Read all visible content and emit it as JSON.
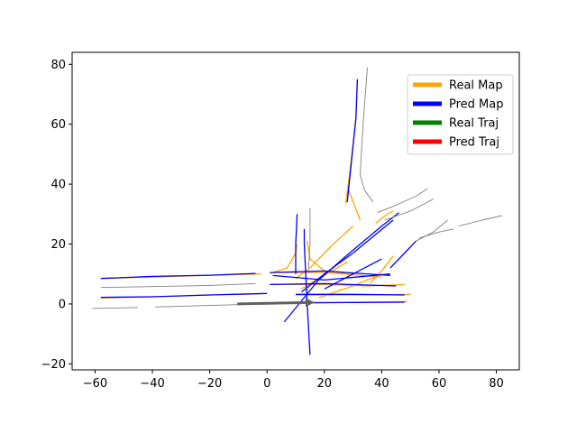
{
  "chart_data": {
    "type": "line",
    "title": "",
    "xlabel": "",
    "ylabel": "",
    "xlim": [
      -68,
      88
    ],
    "ylim": [
      -22,
      84
    ],
    "xticks": [
      -60,
      -40,
      -20,
      0,
      20,
      40,
      60,
      80
    ],
    "yticks": [
      -20,
      0,
      20,
      40,
      60,
      80
    ],
    "xtick_labels": [
      "−60",
      "−40",
      "−20",
      "0",
      "20",
      "40",
      "60",
      "80"
    ],
    "ytick_labels": [
      "−20",
      "0",
      "20",
      "40",
      "60",
      "80"
    ],
    "grid": false,
    "legend_position": "upper-right",
    "legend": [
      {
        "label": "Real Map",
        "color": "#FFA500"
      },
      {
        "label": "Pred Map",
        "color": "#0000FF"
      },
      {
        "label": "Real Traj",
        "color": "#008000"
      },
      {
        "label": "Pred Traj",
        "color": "#FF0000"
      }
    ],
    "series": [
      {
        "name": "Real Map",
        "color": "#FFA500",
        "lines": [
          [
            [
              -58,
              8.5
            ],
            [
              -40,
              9.0
            ],
            [
              -20,
              9.6
            ],
            [
              -2,
              10.0
            ]
          ],
          [
            [
              -58,
              2.0
            ],
            [
              -40,
              2.4
            ],
            [
              -20,
              3.0
            ],
            [
              -2,
              3.4
            ]
          ],
          [
            [
              1,
              6.5
            ],
            [
              20,
              6.5
            ],
            [
              35,
              6.0
            ],
            [
              48,
              6.5
            ]
          ],
          [
            [
              10,
              3.0
            ],
            [
              30,
              3.0
            ],
            [
              50,
              3.2
            ]
          ],
          [
            [
              10,
              0.5
            ],
            [
              30,
              0.5
            ],
            [
              49,
              0.8
            ]
          ],
          [
            [
              1,
              10.5
            ],
            [
              20,
              10.5
            ],
            [
              40,
              9.0
            ]
          ],
          [
            [
              1,
              10.2
            ],
            [
              7,
              12
            ],
            [
              10,
              17
            ],
            [
              10.5,
              20
            ]
          ],
          [
            [
              14,
              21
            ],
            [
              15,
              15
            ],
            [
              20,
              11
            ],
            [
              30,
              10
            ]
          ],
          [
            [
              10,
              8.5
            ],
            [
              15,
              12
            ],
            [
              22,
              19
            ],
            [
              30,
              26
            ]
          ],
          [
            [
              12,
              5
            ],
            [
              18,
              8.5
            ],
            [
              28,
              14
            ]
          ],
          [
            [
              18,
              2
            ],
            [
              30,
              6
            ],
            [
              40,
              10
            ]
          ],
          [
            [
              36,
              7
            ],
            [
              40,
              11
            ],
            [
              44,
              16
            ]
          ],
          [
            [
              27.5,
              33.5
            ],
            [
              29,
              45
            ],
            [
              31,
              62
            ],
            [
              31.5,
              75
            ]
          ],
          [
            [
              28.5,
              38
            ],
            [
              30.5,
              33
            ],
            [
              32.5,
              28
            ]
          ],
          [
            [
              38,
              27
            ],
            [
              42,
              30
            ],
            [
              44,
              31
            ]
          ]
        ]
      },
      {
        "name": "Pred Map",
        "color": "#0000FF",
        "lines": [
          [
            [
              -58,
              8.5
            ],
            [
              -40,
              9.2
            ],
            [
              -20,
              9.6
            ],
            [
              -4,
              10.2
            ]
          ],
          [
            [
              -58,
              2.2
            ],
            [
              -40,
              2.4
            ],
            [
              -20,
              3.0
            ],
            [
              0,
              3.5
            ]
          ],
          [
            [
              1,
              6.5
            ],
            [
              20,
              6.8
            ],
            [
              45,
              6.0
            ]
          ],
          [
            [
              10,
              3.2
            ],
            [
              30,
              3.2
            ],
            [
              48,
              3.0
            ]
          ],
          [
            [
              10,
              0.3
            ],
            [
              30,
              0.5
            ],
            [
              48,
              0.6
            ]
          ],
          [
            [
              1,
              10.5
            ],
            [
              20,
              11
            ],
            [
              43,
              9.5
            ]
          ],
          [
            [
              2,
              9.5
            ],
            [
              20,
              8.0
            ],
            [
              43,
              10
            ]
          ],
          [
            [
              6,
              -6
            ],
            [
              18,
              8
            ],
            [
              30,
              18
            ],
            [
              40,
              26
            ],
            [
              46,
              30.5
            ]
          ],
          [
            [
              15,
              -17
            ],
            [
              14,
              0
            ],
            [
              13,
              20
            ],
            [
              13,
              25
            ]
          ],
          [
            [
              10.5,
              30
            ],
            [
              10,
              20
            ],
            [
              10,
              10
            ]
          ],
          [
            [
              12,
              4
            ],
            [
              20,
              10
            ],
            [
              30,
              17
            ],
            [
              44,
              28
            ]
          ],
          [
            [
              20,
              5
            ],
            [
              30,
              10
            ],
            [
              40,
              15
            ]
          ],
          [
            [
              43,
              12
            ],
            [
              48,
              17
            ],
            [
              52,
              21
            ]
          ],
          [
            [
              28,
              34
            ],
            [
              29.5,
              48
            ],
            [
              31,
              62
            ],
            [
              31.5,
              75
            ]
          ]
        ]
      },
      {
        "name": "",
        "color": "#808080",
        "lines": [
          [
            [
              -61,
              -1.5
            ],
            [
              -45,
              -1.2
            ]
          ],
          [
            [
              -39,
              -1.0
            ],
            [
              -20,
              -0.5
            ],
            [
              -2,
              0
            ]
          ],
          [
            [
              -58,
              5.5
            ],
            [
              -40,
              5.8
            ],
            [
              -20,
              6.2
            ],
            [
              -4,
              6.8
            ]
          ],
          [
            [
              15,
              32
            ],
            [
              15,
              20
            ],
            [
              14.5,
              12
            ]
          ],
          [
            [
              35,
              79
            ],
            [
              33.5,
              60
            ],
            [
              32.5,
              43
            ],
            [
              34,
              38
            ],
            [
              37,
              34
            ]
          ],
          [
            [
              38.5,
              30.5
            ],
            [
              45,
              33
            ],
            [
              52,
              36
            ],
            [
              56,
              38.5
            ]
          ],
          [
            [
              41,
              28
            ],
            [
              50,
              31
            ],
            [
              58,
              35
            ]
          ],
          [
            [
              52,
              21
            ],
            [
              58,
              24
            ],
            [
              63,
              28
            ]
          ],
          [
            [
              53,
              22
            ],
            [
              60,
              24
            ],
            [
              65,
              25
            ]
          ],
          [
            [
              67,
              26
            ],
            [
              75,
              28
            ],
            [
              82,
              29.5
            ]
          ]
        ]
      }
    ],
    "ego_trajectory": {
      "color": "#606060",
      "points": [
        [
          -10,
          0
        ],
        [
          0,
          0.2
        ],
        [
          10,
          0.4
        ],
        [
          15,
          0.5
        ]
      ]
    }
  }
}
